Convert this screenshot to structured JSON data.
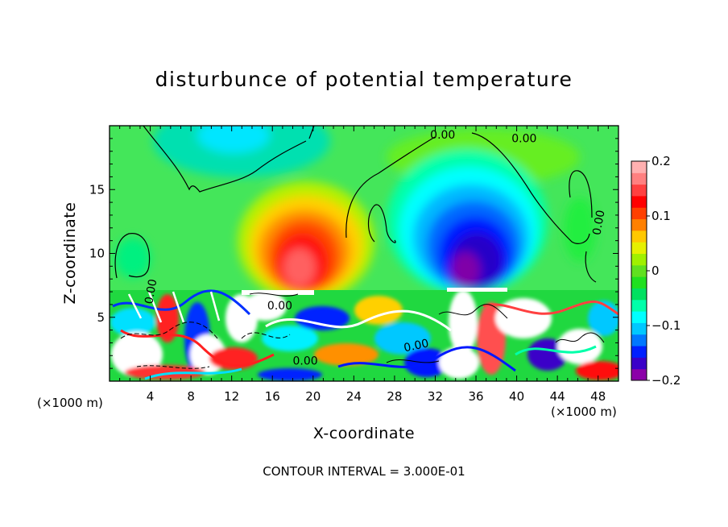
{
  "chart_data": {
    "type": "heatmap",
    "title": "disturbunce of potential temperature",
    "xlabel": "X-coordinate",
    "ylabel": "Z-coordinate",
    "x_unit": "(×1000 m)",
    "xlim": [
      0,
      50
    ],
    "ylim": [
      0,
      20
    ],
    "x_ticks": [
      "4",
      "8",
      "12",
      "16",
      "20",
      "24",
      "28",
      "32",
      "36",
      "40",
      "44",
      "48"
    ],
    "y_ticks": [
      "5",
      "10",
      "15"
    ],
    "colorbar": {
      "range": [
        -0.2,
        0.2
      ],
      "tick_labels": [
        "0.2",
        "0.1",
        "0",
        "−0.1",
        "−0.2"
      ],
      "colors": [
        "#8b00a8",
        "#3a00c8",
        "#0020ff",
        "#0078ff",
        "#00c8ff",
        "#00ffff",
        "#00ffaa",
        "#00e060",
        "#20e020",
        "#60e020",
        "#a0f000",
        "#e6f000",
        "#ffc800",
        "#ff8000",
        "#ff4000",
        "#ff0000",
        "#ff4040",
        "#ff8080",
        "#ffb0b0"
      ]
    },
    "contour_labels": [
      "0.00",
      "0.00",
      "0.00",
      "0.00",
      "0.00",
      "0.00",
      "0.00"
    ],
    "features": [
      {
        "kind": "warm_anomaly",
        "x": 19,
        "z": 10.5,
        "peak": 0.2
      },
      {
        "kind": "cold_anomaly",
        "x": 34,
        "z": 10.5,
        "peak": -0.2
      },
      {
        "kind": "cold_anomaly",
        "x": 13,
        "z": 19,
        "peak": -0.05
      },
      {
        "kind": "turbulent_layer",
        "z_top": 7.1
      }
    ],
    "footnote": "CONTOUR INTERVAL = 3.000E-01"
  }
}
